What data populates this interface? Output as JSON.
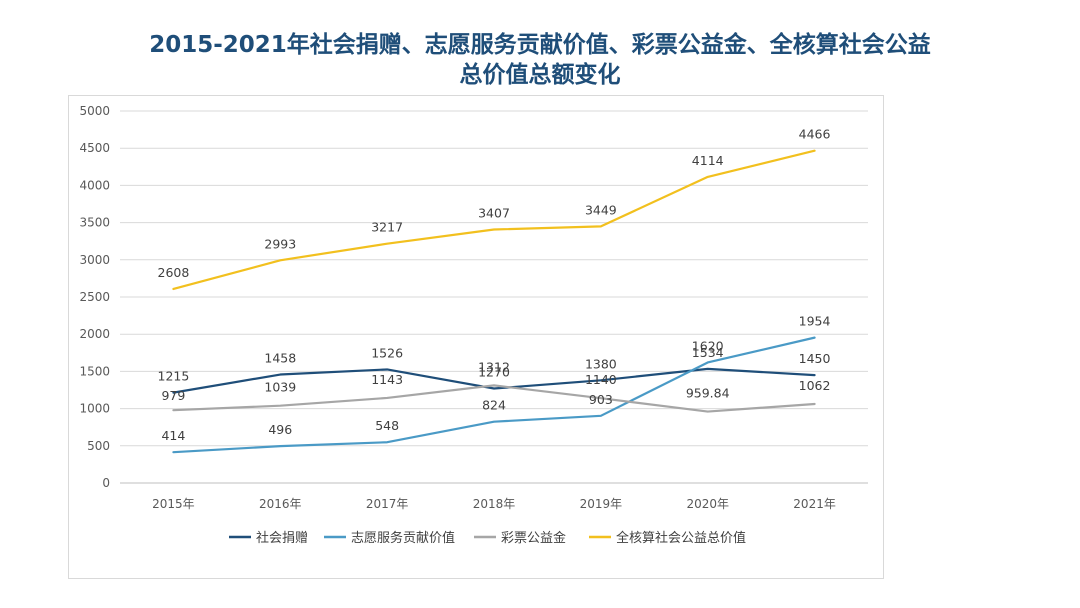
{
  "title_line1": "2015-2021年社会捐赠、志愿服务贡献价值、彩票公益金、全核算社会公益",
  "title_line2": "总价值总额变化",
  "chart_data": {
    "type": "line",
    "title": "2015-2021年社会捐赠、志愿服务贡献价值、彩票公益金、全核算社会公益总价值总额变化",
    "categories": [
      "2015年",
      "2016年",
      "2017年",
      "2018年",
      "2019年",
      "2020年",
      "2021年"
    ],
    "ylim": [
      0,
      5000
    ],
    "yticks": [
      0,
      500,
      1000,
      1500,
      2000,
      2500,
      3000,
      3500,
      4000,
      4500,
      5000
    ],
    "grid": true,
    "legend_position": "bottom",
    "series": [
      {
        "name": "社会捐赠",
        "color": "#1f4e79",
        "values": [
          1215,
          1458,
          1526,
          1270,
          1380,
          1534,
          1450
        ]
      },
      {
        "name": "志愿服务贡献价值",
        "color": "#4a9ac6",
        "values": [
          414,
          496,
          548,
          824,
          903,
          1620,
          1954
        ]
      },
      {
        "name": "彩票公益金",
        "color": "#a6a6a6",
        "values": [
          979,
          1039,
          1143,
          1312,
          1140,
          959.84,
          1062
        ]
      },
      {
        "name": "全核算社会公益总价值",
        "color": "#f2c01e",
        "values": [
          2608,
          2993,
          3217,
          3407,
          3449,
          4114,
          4466
        ]
      }
    ]
  }
}
